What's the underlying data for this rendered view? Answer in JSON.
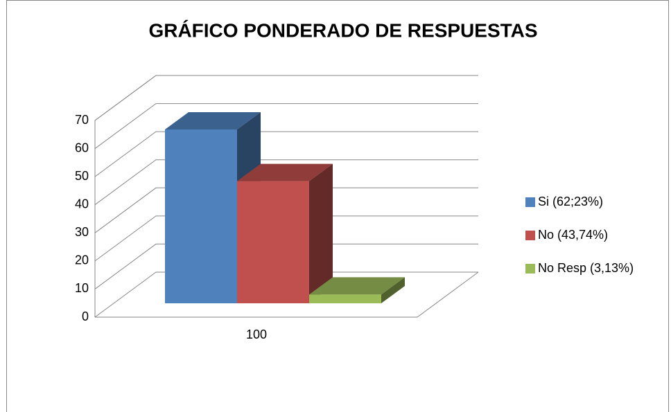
{
  "chart_data": {
    "type": "bar3d",
    "title": "GRÁFICO PONDERADO DE RESPUESTAS",
    "categories": [
      "100"
    ],
    "series": [
      {
        "name": "Si (62;23%)",
        "color": "#4f81bd",
        "values": [
          62.23
        ]
      },
      {
        "name": "No (43,74%)",
        "color": "#c0504d",
        "values": [
          43.74
        ]
      },
      {
        "name": "No Resp (3,13%)",
        "color": "#9bbb59",
        "values": [
          3.13
        ]
      }
    ],
    "ylim": [
      0,
      70
    ],
    "yticks": [
      0,
      10,
      20,
      30,
      40,
      50,
      60,
      70
    ],
    "grid": true,
    "legend": "right"
  }
}
